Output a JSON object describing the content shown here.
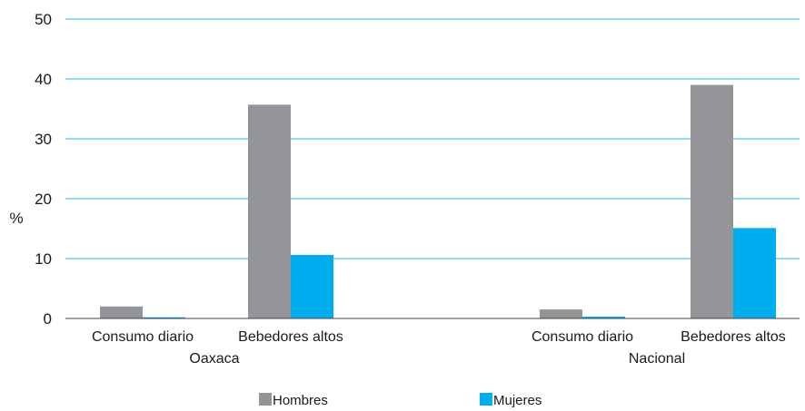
{
  "chart_data": {
    "type": "bar",
    "ylabel": "%",
    "ylim": [
      0,
      50
    ],
    "yticks": [
      0,
      10,
      20,
      30,
      40,
      50
    ],
    "grid": true,
    "legend_position": "bottom",
    "groups": [
      {
        "label": "Oaxaca",
        "categories": [
          "Consumo diario",
          "Bebedores altos"
        ],
        "series": [
          {
            "name": "Hombres",
            "values": [
              2.0,
              35.7
            ]
          },
          {
            "name": "Mujeres",
            "values": [
              0.2,
              10.6
            ]
          }
        ]
      },
      {
        "label": "Nacional",
        "categories": [
          "Consumo diario",
          "Bebedores altos"
        ],
        "series": [
          {
            "name": "Hombres",
            "values": [
              1.5,
              39.0
            ]
          },
          {
            "name": "Mujeres",
            "values": [
              0.3,
              15.1
            ]
          }
        ]
      }
    ],
    "legend": [
      {
        "name": "Hombres",
        "color": "#939598"
      },
      {
        "name": "Mujeres",
        "color": "#00aeef"
      }
    ],
    "colors": {
      "Hombres": "#939598",
      "Mujeres": "#00aeef",
      "grid": "#29b6e8",
      "axis": "#444444"
    }
  }
}
